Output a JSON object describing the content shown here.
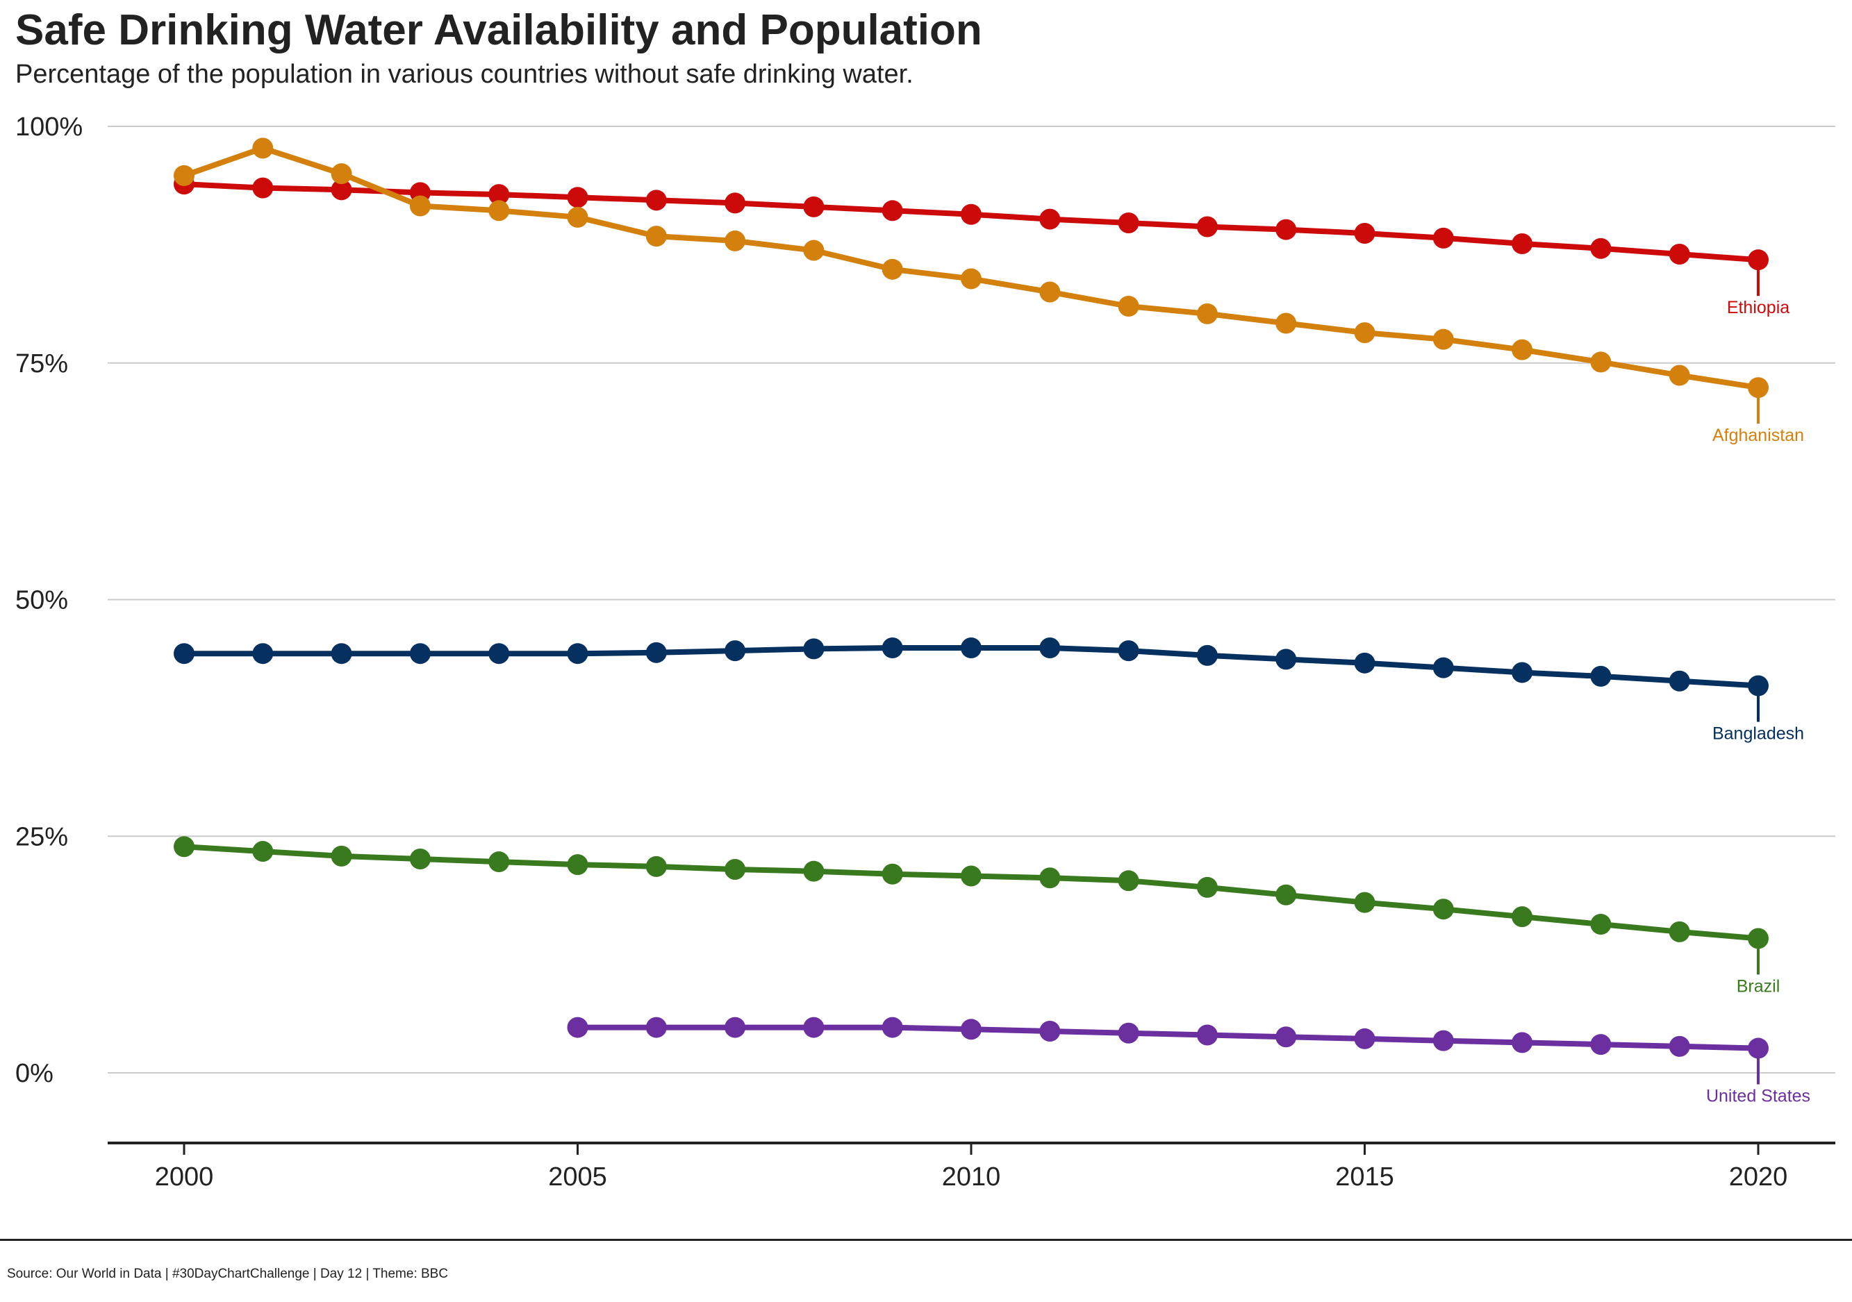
{
  "chart_data": {
    "type": "line",
    "title": "Safe Drinking Water Availability and Population",
    "subtitle": "Percentage of the population in various countries without safe drinking water.",
    "source": "Source: Our World in Data | #30DayChartChallenge | Day 12 | Theme: BBC",
    "xlabel": "",
    "ylabel": "",
    "xlim": [
      1999,
      2021
    ],
    "ylim": [
      -7.5,
      100
    ],
    "x_ticks": [
      2000,
      2005,
      2010,
      2015,
      2020
    ],
    "x_tick_labels": [
      "2000",
      "2005",
      "2010",
      "2015",
      "2020"
    ],
    "y_ticks": [
      0,
      25,
      50,
      75,
      100
    ],
    "y_tick_labels": [
      "0%",
      "25%",
      "50%",
      "75%",
      "100%"
    ],
    "grid": "horizontal",
    "legend": "direct labels at line ends",
    "series": [
      {
        "name": "Ethiopia",
        "color": "#cc0a0a",
        "x": [
          2000,
          2001,
          2002,
          2003,
          2004,
          2005,
          2006,
          2007,
          2008,
          2009,
          2010,
          2011,
          2012,
          2013,
          2014,
          2015,
          2016,
          2017,
          2018,
          2019,
          2020
        ],
        "values": [
          93.9,
          93.5,
          93.3,
          93.0,
          92.8,
          92.5,
          92.2,
          91.9,
          91.5,
          91.1,
          90.7,
          90.2,
          89.8,
          89.4,
          89.1,
          88.7,
          88.2,
          87.6,
          87.1,
          86.5,
          85.9
        ]
      },
      {
        "name": "Afghanistan",
        "color": "#d4800c",
        "x": [
          2000,
          2001,
          2002,
          2003,
          2004,
          2005,
          2006,
          2007,
          2008,
          2009,
          2010,
          2011,
          2012,
          2013,
          2014,
          2015,
          2016,
          2017,
          2018,
          2019,
          2020
        ],
        "values": [
          94.8,
          97.7,
          95.0,
          91.6,
          91.1,
          90.4,
          88.4,
          87.9,
          86.9,
          84.9,
          83.9,
          82.5,
          81.0,
          80.2,
          79.2,
          78.2,
          77.5,
          76.4,
          75.1,
          73.7,
          72.4
        ]
      },
      {
        "name": "Bangladesh",
        "color": "#063060",
        "x": [
          2000,
          2001,
          2002,
          2003,
          2004,
          2005,
          2006,
          2007,
          2008,
          2009,
          2010,
          2011,
          2012,
          2013,
          2014,
          2015,
          2016,
          2017,
          2018,
          2019,
          2020
        ],
        "values": [
          44.3,
          44.3,
          44.3,
          44.3,
          44.3,
          44.3,
          44.4,
          44.6,
          44.8,
          44.9,
          44.9,
          44.9,
          44.6,
          44.1,
          43.7,
          43.3,
          42.8,
          42.3,
          41.9,
          41.4,
          40.9
        ]
      },
      {
        "name": "Brazil",
        "color": "#3a7a1f",
        "x": [
          2000,
          2001,
          2002,
          2003,
          2004,
          2005,
          2006,
          2007,
          2008,
          2009,
          2010,
          2011,
          2012,
          2013,
          2014,
          2015,
          2016,
          2017,
          2018,
          2019,
          2020
        ],
        "values": [
          23.9,
          23.4,
          22.9,
          22.6,
          22.3,
          22.0,
          21.8,
          21.5,
          21.3,
          21.0,
          20.8,
          20.6,
          20.3,
          19.6,
          18.8,
          18.0,
          17.3,
          16.5,
          15.7,
          14.9,
          14.2
        ]
      },
      {
        "name": "United States",
        "color": "#6b2fa0",
        "x": [
          2005,
          2006,
          2007,
          2008,
          2009,
          2010,
          2011,
          2012,
          2013,
          2014,
          2015,
          2016,
          2017,
          2018,
          2019,
          2020
        ],
        "values": [
          4.8,
          4.8,
          4.8,
          4.8,
          4.8,
          4.6,
          4.4,
          4.2,
          4.0,
          3.8,
          3.6,
          3.4,
          3.2,
          3.0,
          2.8,
          2.6
        ]
      }
    ]
  }
}
